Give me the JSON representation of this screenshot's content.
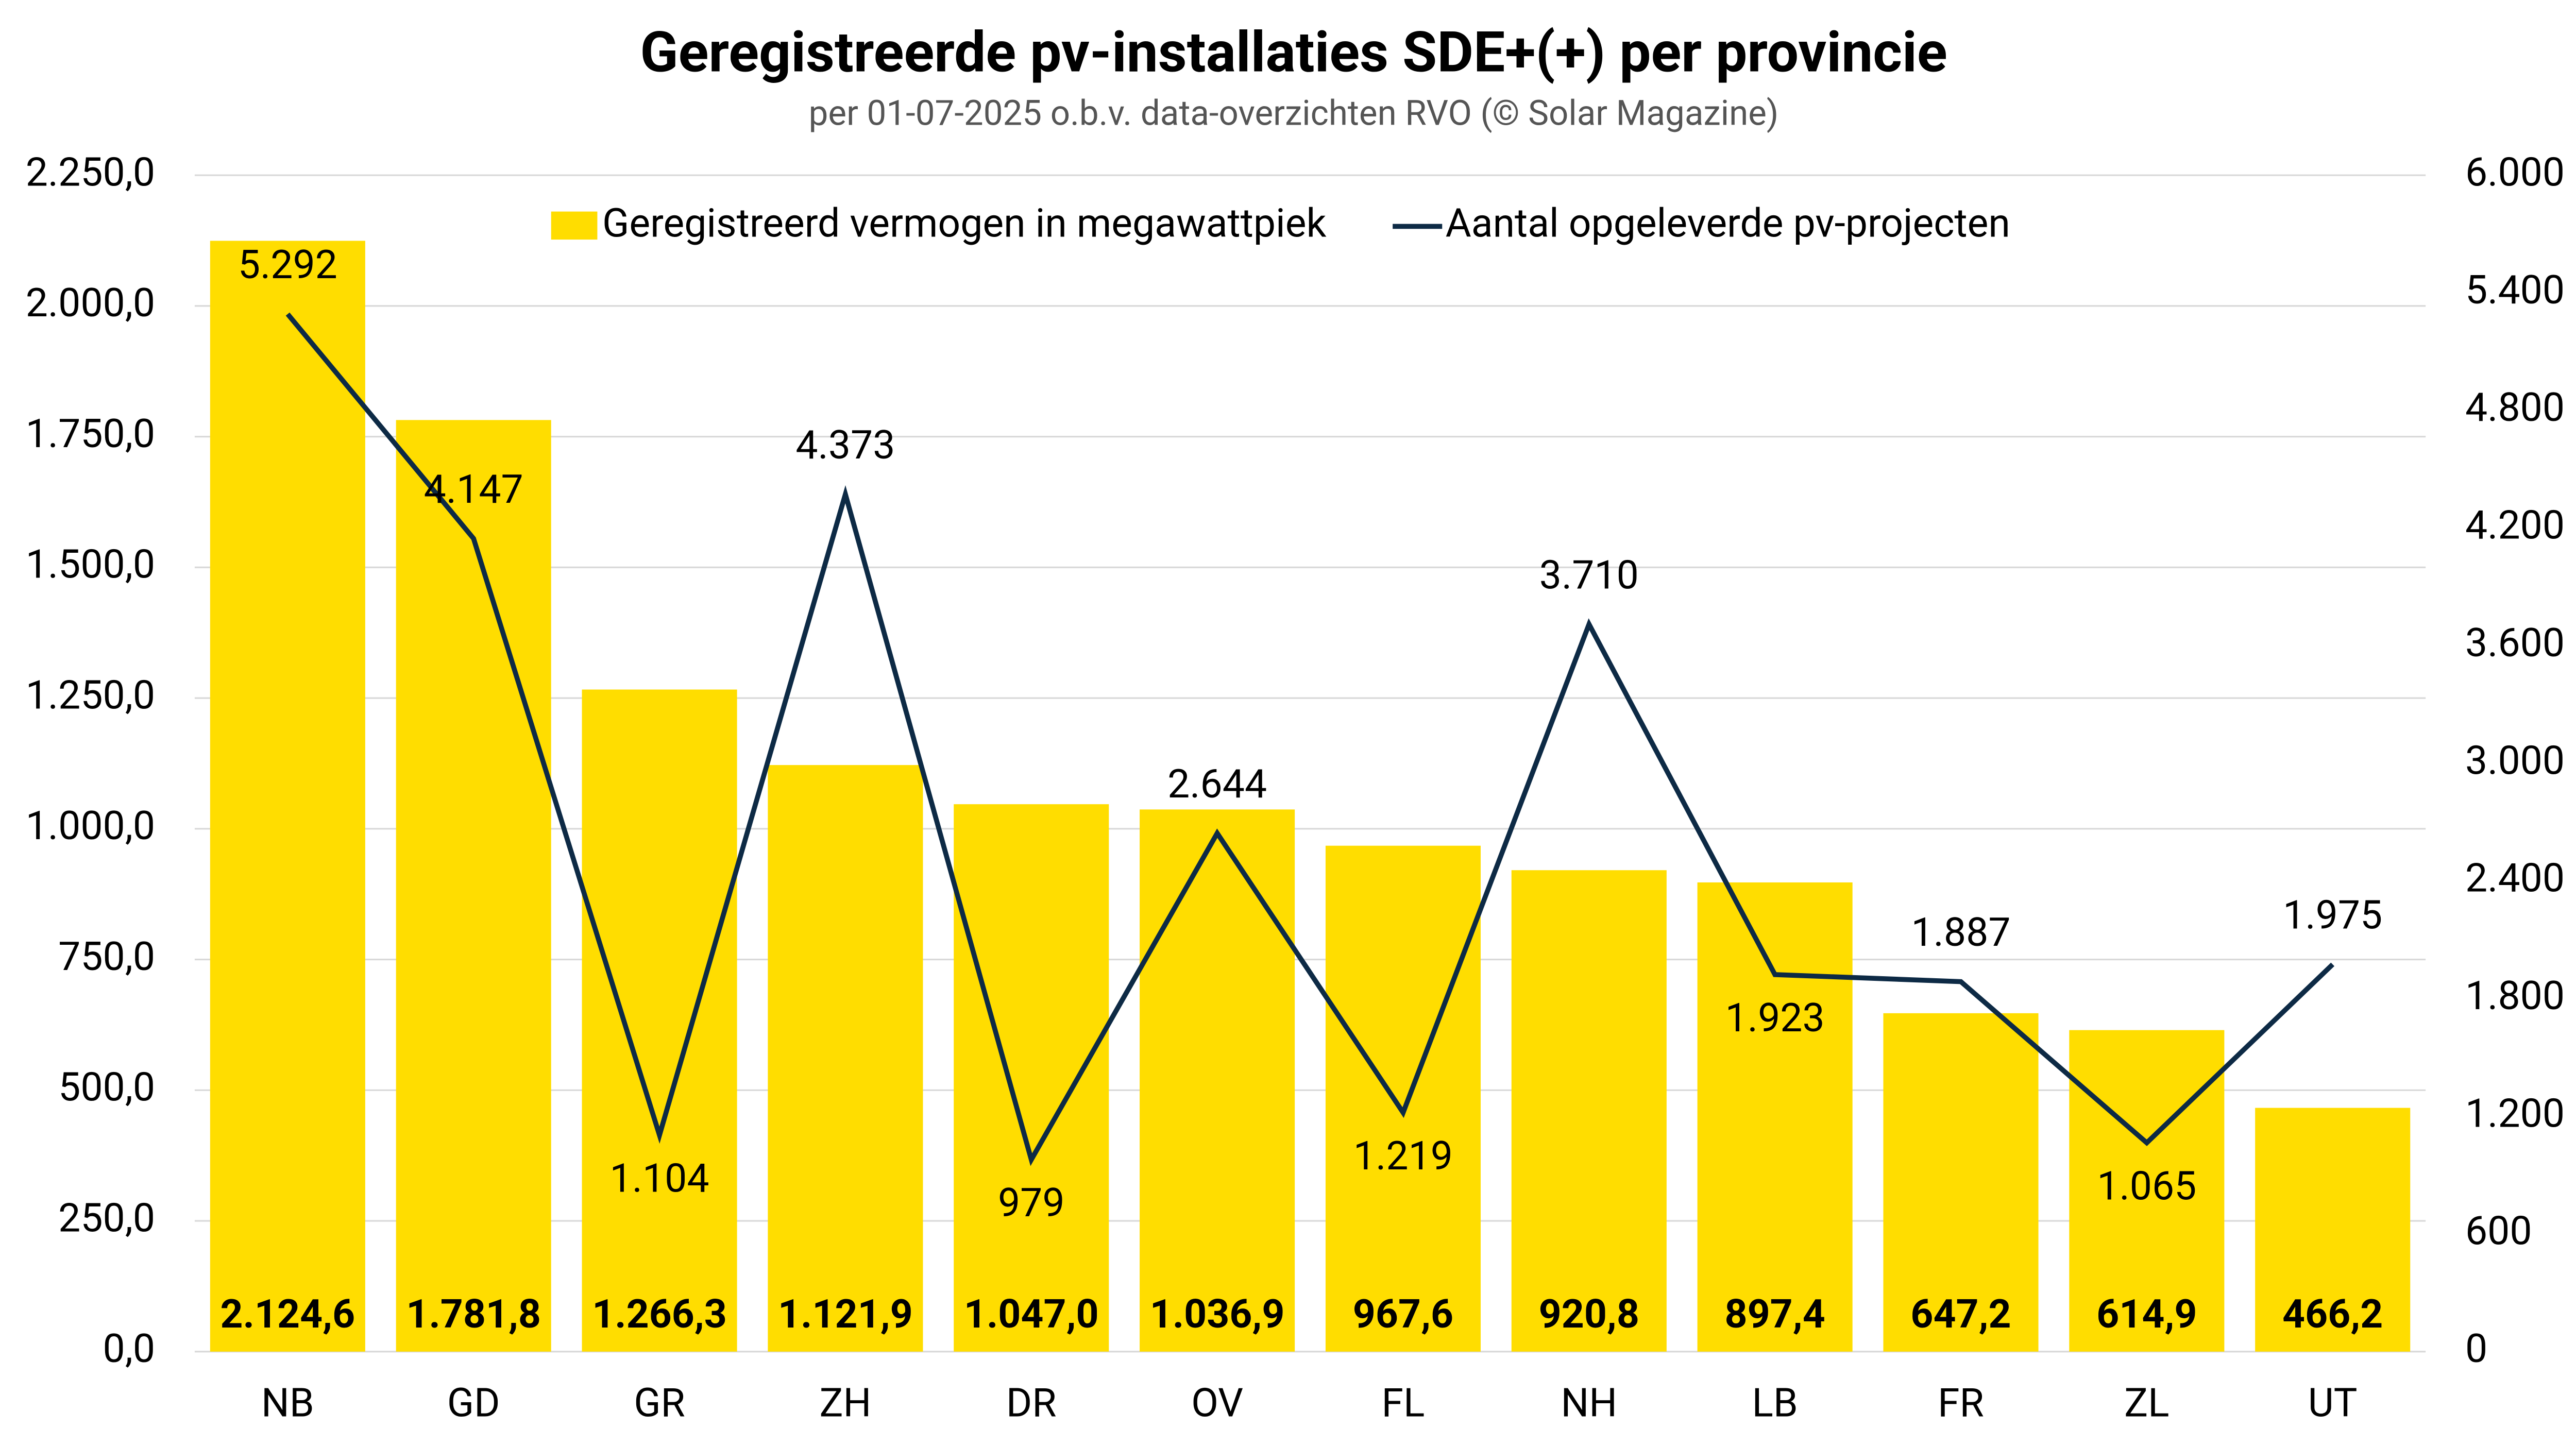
{
  "chart_data": {
    "type": "bar_line",
    "title": "Geregistreerde pv-installaties SDE+(+) per provincie",
    "subtitle": "per 01-07-2025 o.b.v. data-overzichten RVO (© Solar Magazine)",
    "categories": [
      "NB",
      "GD",
      "GR",
      "ZH",
      "DR",
      "OV",
      "FL",
      "NH",
      "LB",
      "FR",
      "ZL",
      "UT"
    ],
    "series": [
      {
        "name": "Geregistreerd vermogen in megawattpiek",
        "type": "bar",
        "color": "#ffdd00",
        "values": [
          2124.6,
          1781.8,
          1266.3,
          1121.9,
          1047.0,
          1036.9,
          967.6,
          920.8,
          897.4,
          647.2,
          614.9,
          466.2
        ],
        "value_labels": [
          "2.124,6",
          "1.781,8",
          "1.266,3",
          "1.121,9",
          "1.047,0",
          "1.036,9",
          "967,6",
          "920,8",
          "897,4",
          "647,2",
          "614,9",
          "466,2"
        ]
      },
      {
        "name": "Aantal opgeleverde pv-projecten",
        "type": "line",
        "axis": "y2",
        "color": "#0d2a45",
        "values": [
          5292,
          4147,
          1104,
          4373,
          979,
          2644,
          1219,
          3710,
          1923,
          1887,
          1065,
          1975
        ],
        "value_labels": [
          "5.292",
          "4.147",
          "1.104",
          "4.373",
          "979",
          "2.644",
          "1.219",
          "3.710",
          "1.923",
          "1.887",
          "1.065",
          "1.975"
        ]
      }
    ],
    "ylim": [
      0,
      2250
    ],
    "yticks": [
      {
        "value": 0,
        "label": "0,0"
      },
      {
        "value": 250,
        "label": "250,0"
      },
      {
        "value": 500,
        "label": "500,0"
      },
      {
        "value": 750,
        "label": "750,0"
      },
      {
        "value": 1000,
        "label": "1.000,0"
      },
      {
        "value": 1250,
        "label": "1.250,0"
      },
      {
        "value": 1500,
        "label": "1.500,0"
      },
      {
        "value": 1750,
        "label": "1.750,0"
      },
      {
        "value": 2000,
        "label": "2.000,0"
      },
      {
        "value": 2250,
        "label": "2.250,0"
      }
    ],
    "y2lim": [
      0,
      6000
    ],
    "y2ticks": [
      0,
      600,
      {
        "value": 1200,
        "label": "1.200"
      },
      {
        "value": 1800,
        "label": "1.800"
      },
      {
        "value": 2400,
        "label": "2.400"
      },
      {
        "value": 3000,
        "label": "3.000"
      },
      {
        "value": 3600,
        "label": "3.600"
      },
      {
        "value": 4200,
        "label": "4.200"
      },
      {
        "value": 4800,
        "label": "4.800"
      },
      {
        "value": 5400,
        "label": "5.400"
      },
      {
        "value": 6000,
        "label": "6.000"
      }
    ],
    "grid": true,
    "legend": "top"
  }
}
